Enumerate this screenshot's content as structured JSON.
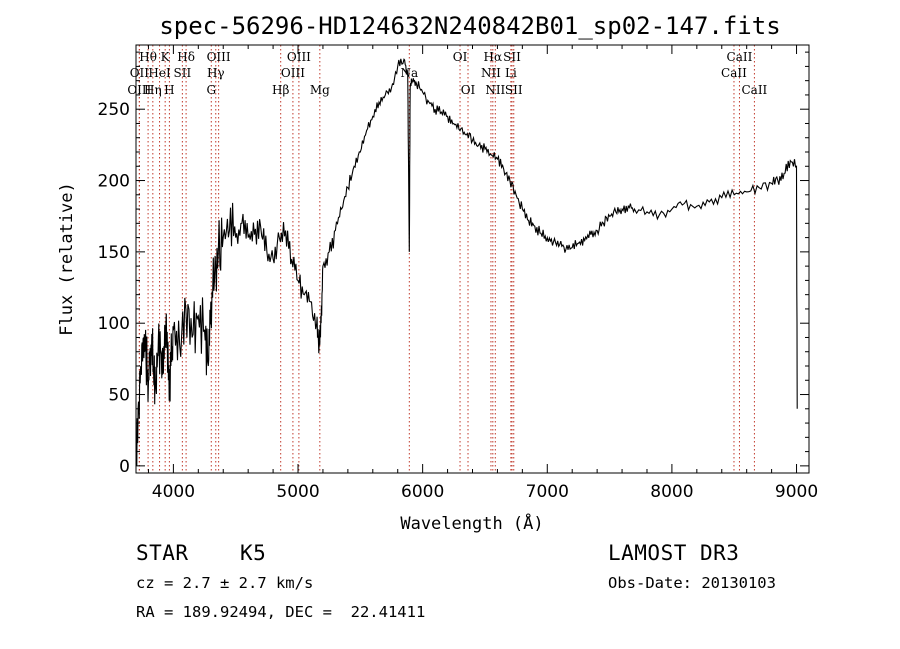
{
  "chart_data": {
    "type": "line",
    "title": "spec-56296-HD124632N240842B01_sp02-147.fits",
    "xlabel": "Wavelength (Å)",
    "ylabel": "Flux (relative)",
    "xlim": [
      3700,
      9100
    ],
    "ylim": [
      -5,
      295
    ],
    "xticks": [
      4000,
      5000,
      6000,
      7000,
      8000,
      9000
    ],
    "yticks": [
      0,
      50,
      100,
      150,
      200,
      250
    ],
    "series": [
      {
        "name": "flux",
        "x": [
          3700,
          3720,
          3740,
          3760,
          3780,
          3800,
          3820,
          3840,
          3860,
          3880,
          3900,
          3920,
          3940,
          3960,
          3980,
          4000,
          4050,
          4100,
          4150,
          4200,
          4250,
          4280,
          4300,
          4330,
          4360,
          4400,
          4450,
          4500,
          4550,
          4600,
          4650,
          4700,
          4750,
          4800,
          4850,
          4900,
          4950,
          5000,
          5050,
          5100,
          5150,
          5170,
          5185,
          5200,
          5250,
          5300,
          5350,
          5400,
          5450,
          5500,
          5550,
          5600,
          5650,
          5700,
          5750,
          5800,
          5850,
          5880,
          5893,
          5900,
          5920,
          5950,
          6000,
          6050,
          6100,
          6150,
          6200,
          6250,
          6300,
          6350,
          6400,
          6450,
          6500,
          6550,
          6600,
          6650,
          6700,
          6750,
          6800,
          6850,
          6900,
          6950,
          7000,
          7050,
          7100,
          7150,
          7200,
          7250,
          7300,
          7350,
          7400,
          7450,
          7500,
          7550,
          7600,
          7650,
          7700,
          7800,
          7900,
          8000,
          8100,
          8200,
          8300,
          8400,
          8500,
          8600,
          8700,
          8800,
          8850,
          8900,
          8950,
          9000,
          9005
        ],
        "y": [
          10,
          45,
          70,
          90,
          75,
          60,
          85,
          70,
          55,
          90,
          80,
          65,
          100,
          60,
          70,
          95,
          85,
          110,
          90,
          105,
          95,
          70,
          115,
          130,
          150,
          160,
          165,
          160,
          170,
          160,
          162,
          168,
          150,
          145,
          160,
          165,
          145,
          130,
          120,
          115,
          100,
          85,
          100,
          140,
          150,
          165,
          180,
          195,
          210,
          220,
          235,
          245,
          255,
          260,
          265,
          280,
          285,
          275,
          150,
          265,
          270,
          268,
          262,
          255,
          250,
          248,
          245,
          240,
          235,
          232,
          228,
          225,
          222,
          218,
          215,
          208,
          200,
          190,
          180,
          172,
          168,
          163,
          160,
          157,
          155,
          152,
          153,
          156,
          158,
          162,
          165,
          170,
          175,
          178,
          180,
          182,
          180,
          178,
          176,
          180,
          184,
          182,
          185,
          188,
          190,
          192,
          195,
          198,
          200,
          205,
          214,
          210,
          40
        ]
      }
    ],
    "lines": [
      {
        "label": "Hθ",
        "x": 3797,
        "row": 0
      },
      {
        "label": "K",
        "x": 3934,
        "row": 0
      },
      {
        "label": "Hδ",
        "x": 4102,
        "row": 0
      },
      {
        "label": "OIII",
        "x": 4363,
        "row": 0
      },
      {
        "label": "OIII",
        "x": 5007,
        "row": 0
      },
      {
        "label": "OI",
        "x": 6300,
        "row": 0
      },
      {
        "label": "Hα",
        "x": 6563,
        "row": 0
      },
      {
        "label": "SII",
        "x": 6717,
        "row": 0
      },
      {
        "label": "CaII",
        "x": 8542,
        "row": 0
      },
      {
        "label": "OII",
        "x": 3727,
        "row": 1
      },
      {
        "label": "HeI",
        "x": 3889,
        "row": 1
      },
      {
        "label": "SII",
        "x": 4072,
        "row": 1
      },
      {
        "label": "Hγ",
        "x": 4340,
        "row": 1
      },
      {
        "label": "OIII",
        "x": 4959,
        "row": 1
      },
      {
        "label": "NII",
        "x": 6548,
        "row": 1
      },
      {
        "label": "Li",
        "x": 6708,
        "row": 1
      },
      {
        "label": "CaII",
        "x": 8498,
        "row": 1
      },
      {
        "label": "OIII",
        "x": 3727,
        "row": 2
      },
      {
        "label": "Hη",
        "x": 3835,
        "row": 2
      },
      {
        "label": "H",
        "x": 3968,
        "row": 2
      },
      {
        "label": "G",
        "x": 4304,
        "row": 2
      },
      {
        "label": "Hβ",
        "x": 4861,
        "row": 2
      },
      {
        "label": "Mg",
        "x": 5175,
        "row": 2
      },
      {
        "label": "Na",
        "x": 5893,
        "row": 1
      },
      {
        "label": "OI",
        "x": 6364,
        "row": 2
      },
      {
        "label": "NII",
        "x": 6583,
        "row": 2
      },
      {
        "label": "SII",
        "x": 6731,
        "row": 2
      },
      {
        "label": "CaII",
        "x": 8662,
        "row": 2
      }
    ]
  },
  "info": {
    "object_class": "STAR",
    "subclass": "K5",
    "cz": "cz = 2.7 ± 2.7 km/s",
    "coords": "RA = 189.92494, DEC =  22.41411",
    "survey": "LAMOST DR3",
    "obs_date": "Obs-Date: 20130103"
  }
}
